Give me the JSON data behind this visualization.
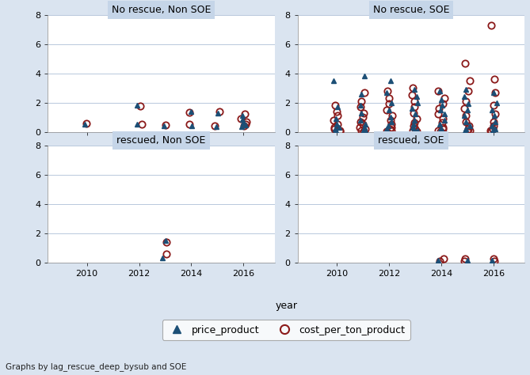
{
  "panels": [
    {
      "title": "No rescue, Non SOE",
      "row": 0,
      "col": 0,
      "price_data": {
        "2010": [
          0.5
        ],
        "2012": [
          0.5,
          1.8
        ],
        "2013": [
          0.4
        ],
        "2014": [
          0.4,
          1.4
        ],
        "2015": [
          0.35,
          1.3
        ],
        "2016": [
          0.35,
          1.1,
          0.85,
          0.65,
          0.45
        ]
      },
      "cost_data": {
        "2010": [
          0.55
        ],
        "2012": [
          0.5,
          1.75
        ],
        "2013": [
          0.45
        ],
        "2014": [
          0.5,
          1.35
        ],
        "2015": [
          0.4,
          1.4
        ],
        "2016": [
          0.4,
          1.2,
          0.9,
          0.7,
          0.5
        ]
      }
    },
    {
      "title": "No rescue, SOE",
      "row": 0,
      "col": 1,
      "price_data": {
        "2010": [
          3.5,
          1.7,
          0.9,
          0.5,
          0.3,
          0.2,
          0.1
        ],
        "2011": [
          3.8,
          2.6,
          1.8,
          1.3,
          0.8,
          0.5,
          0.3,
          0.15,
          0.08
        ],
        "2012": [
          3.5,
          2.7,
          2.0,
          1.5,
          1.0,
          0.7,
          0.4,
          0.2,
          0.1
        ],
        "2013": [
          2.9,
          2.4,
          2.0,
          1.6,
          1.2,
          0.8,
          0.5,
          0.3,
          0.15,
          0.08
        ],
        "2014": [
          2.8,
          2.2,
          1.8,
          1.5,
          1.2,
          0.8,
          0.5,
          0.2,
          0.1
        ],
        "2015": [
          2.9,
          2.4,
          1.9,
          1.5,
          1.1,
          0.7,
          0.4,
          0.2,
          0.1
        ],
        "2016": [
          2.7,
          2.0,
          1.5,
          1.1,
          0.7,
          0.4,
          0.2,
          0.1
        ]
      },
      "cost_data": {
        "2010": [
          1.8,
          1.4,
          1.1,
          0.8,
          0.5,
          0.3,
          0.2,
          0.1,
          0.05
        ],
        "2011": [
          2.7,
          2.1,
          1.7,
          1.3,
          1.0,
          0.7,
          0.5,
          0.3,
          0.2,
          0.1,
          0.05
        ],
        "2012": [
          2.8,
          2.3,
          1.9,
          1.5,
          1.1,
          0.8,
          0.5,
          0.3,
          0.2,
          0.1,
          0.05
        ],
        "2013": [
          3.0,
          2.5,
          2.1,
          1.7,
          1.3,
          0.9,
          0.6,
          0.4,
          0.2,
          0.1,
          0.05
        ],
        "2014": [
          2.8,
          2.3,
          1.9,
          1.6,
          1.2,
          0.9,
          0.6,
          0.3,
          0.2,
          0.1,
          0.05
        ],
        "2015": [
          4.7,
          3.5,
          2.8,
          2.1,
          1.6,
          1.1,
          0.7,
          0.4,
          0.2,
          0.1,
          0.05
        ],
        "2016": [
          7.3,
          3.6,
          2.7,
          1.8,
          1.2,
          0.7,
          0.4,
          0.2,
          0.1,
          0.05
        ]
      }
    },
    {
      "title": "rescued, Non SOE",
      "row": 1,
      "col": 0,
      "price_data": {
        "2013": [
          1.5,
          0.3
        ]
      },
      "cost_data": {
        "2013": [
          1.4,
          0.6
        ]
      }
    },
    {
      "title": "rescued, SOE",
      "row": 1,
      "col": 1,
      "price_data": {
        "2014": [
          0.15
        ],
        "2015": [
          0.15
        ],
        "2016": [
          0.15
        ]
      },
      "cost_data": {
        "2014": [
          0.25,
          0.1
        ],
        "2015": [
          0.25,
          0.1
        ],
        "2016": [
          0.25,
          0.1
        ]
      }
    }
  ],
  "ylim": [
    0,
    8
  ],
  "yticks": [
    0,
    2,
    4,
    6,
    8
  ],
  "xlim": [
    2008.5,
    2017.2
  ],
  "xticks": [
    2010,
    2012,
    2014,
    2016
  ],
  "price_color": "#1c4f76",
  "cost_color": "#8b1a1a",
  "bg_color": "#dae4f0",
  "title_bg_color": "#c5d5e8",
  "plot_bg_color": "#ffffff",
  "grid_color": "#b8c8dc",
  "xlabel": "year",
  "footnote": "Graphs by lag_rescue_deep_bysub and SOE",
  "legend_price_label": "price_product",
  "legend_cost_label": "cost_per_ton_product",
  "price_marker_size": 5,
  "cost_marker_size": 6,
  "cost_marker_linewidth": 1.3
}
